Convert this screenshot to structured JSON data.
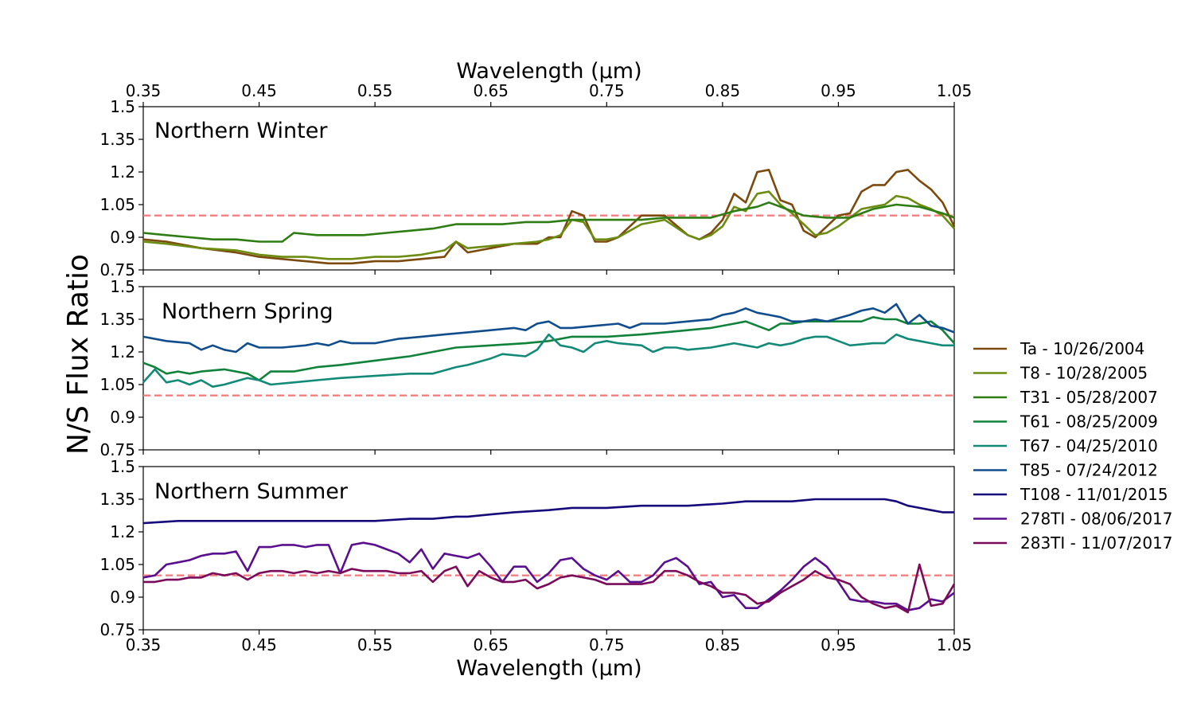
{
  "chart_data": {
    "type": "line",
    "top_xlabel": "Wavelength (µm)",
    "xlabel": "Wavelength (µm)",
    "ylabel": "N/S Flux Ratio",
    "xlim": [
      0.35,
      1.05
    ],
    "ylim": [
      0.75,
      1.5
    ],
    "xticks": [
      "0.35",
      "0.45",
      "0.55",
      "0.65",
      "0.75",
      "0.85",
      "0.95",
      "1.05"
    ],
    "yticks": [
      "0.75",
      "0.9",
      "1.05",
      "1.2",
      "1.35",
      "1.5"
    ],
    "reference_line": {
      "y": 1.0,
      "style": "dashed",
      "color": "#f08080"
    },
    "legend_position": "right",
    "colors": {
      "Ta": "#7b4a0c",
      "T8": "#6b8c10",
      "T31": "#2d7d12",
      "T61": "#10823a",
      "T67": "#138a78",
      "T85": "#114d8c",
      "T108": "#160a7a",
      "278TI": "#5a0f8e",
      "283TI": "#7a0a5a"
    },
    "series": [
      {
        "name": "Ta - 10/26/2004",
        "key": "Ta",
        "panel": 0,
        "x": [
          0.35,
          0.37,
          0.4,
          0.43,
          0.45,
          0.47,
          0.49,
          0.51,
          0.53,
          0.55,
          0.57,
          0.59,
          0.61,
          0.62,
          0.63,
          0.65,
          0.67,
          0.69,
          0.7,
          0.71,
          0.72,
          0.73,
          0.74,
          0.75,
          0.76,
          0.78,
          0.8,
          0.82,
          0.83,
          0.84,
          0.85,
          0.86,
          0.87,
          0.88,
          0.89,
          0.9,
          0.91,
          0.92,
          0.93,
          0.94,
          0.95,
          0.96,
          0.97,
          0.98,
          0.99,
          1.0,
          1.01,
          1.02,
          1.03,
          1.04,
          1.05
        ],
        "y": [
          0.89,
          0.88,
          0.85,
          0.83,
          0.81,
          0.8,
          0.79,
          0.78,
          0.78,
          0.79,
          0.79,
          0.8,
          0.81,
          0.88,
          0.83,
          0.85,
          0.87,
          0.87,
          0.9,
          0.9,
          1.02,
          1.0,
          0.88,
          0.88,
          0.9,
          1.0,
          1.0,
          0.91,
          0.89,
          0.92,
          0.98,
          1.1,
          1.06,
          1.2,
          1.21,
          1.07,
          1.05,
          0.93,
          0.9,
          0.95,
          1.0,
          1.01,
          1.11,
          1.14,
          1.14,
          1.2,
          1.21,
          1.16,
          1.12,
          1.06,
          0.95
        ]
      },
      {
        "name": "T8 - 10/28/2005",
        "key": "T8",
        "panel": 0,
        "x": [
          0.35,
          0.37,
          0.4,
          0.43,
          0.45,
          0.47,
          0.49,
          0.51,
          0.53,
          0.55,
          0.57,
          0.59,
          0.61,
          0.62,
          0.63,
          0.65,
          0.67,
          0.69,
          0.7,
          0.71,
          0.72,
          0.73,
          0.74,
          0.75,
          0.76,
          0.78,
          0.8,
          0.82,
          0.83,
          0.84,
          0.85,
          0.86,
          0.87,
          0.88,
          0.89,
          0.9,
          0.91,
          0.92,
          0.93,
          0.94,
          0.95,
          0.96,
          0.97,
          0.98,
          0.99,
          1.0,
          1.01,
          1.02,
          1.03,
          1.04,
          1.05
        ],
        "y": [
          0.88,
          0.87,
          0.85,
          0.84,
          0.82,
          0.81,
          0.81,
          0.8,
          0.8,
          0.81,
          0.81,
          0.82,
          0.84,
          0.88,
          0.85,
          0.86,
          0.87,
          0.88,
          0.89,
          0.91,
          0.98,
          0.97,
          0.89,
          0.89,
          0.9,
          0.96,
          0.98,
          0.91,
          0.89,
          0.91,
          0.95,
          1.04,
          1.02,
          1.1,
          1.11,
          1.05,
          1.01,
          0.96,
          0.91,
          0.92,
          0.95,
          0.99,
          1.03,
          1.04,
          1.05,
          1.09,
          1.08,
          1.05,
          1.03,
          1.0,
          0.94
        ]
      },
      {
        "name": "T31 - 05/28/2007",
        "key": "T31",
        "panel": 0,
        "x": [
          0.35,
          0.37,
          0.39,
          0.41,
          0.43,
          0.45,
          0.47,
          0.48,
          0.5,
          0.52,
          0.54,
          0.56,
          0.58,
          0.6,
          0.62,
          0.64,
          0.66,
          0.68,
          0.7,
          0.72,
          0.74,
          0.76,
          0.78,
          0.8,
          0.82,
          0.84,
          0.86,
          0.88,
          0.89,
          0.9,
          0.92,
          0.94,
          0.96,
          0.98,
          1.0,
          1.02,
          1.04,
          1.05
        ],
        "y": [
          0.92,
          0.91,
          0.9,
          0.89,
          0.89,
          0.88,
          0.88,
          0.92,
          0.91,
          0.91,
          0.91,
          0.92,
          0.93,
          0.94,
          0.96,
          0.96,
          0.96,
          0.97,
          0.97,
          0.98,
          0.98,
          0.98,
          0.98,
          0.99,
          0.99,
          0.99,
          1.02,
          1.04,
          1.06,
          1.04,
          1.0,
          0.99,
          0.99,
          1.03,
          1.05,
          1.04,
          1.01,
          0.99
        ]
      },
      {
        "name": "T61 - 08/25/2009",
        "key": "T61",
        "panel": 1,
        "x": [
          0.35,
          0.36,
          0.37,
          0.38,
          0.39,
          0.4,
          0.42,
          0.44,
          0.45,
          0.46,
          0.48,
          0.49,
          0.5,
          0.52,
          0.55,
          0.58,
          0.6,
          0.62,
          0.65,
          0.68,
          0.7,
          0.72,
          0.75,
          0.78,
          0.8,
          0.82,
          0.84,
          0.86,
          0.87,
          0.88,
          0.89,
          0.9,
          0.91,
          0.92,
          0.94,
          0.96,
          0.97,
          0.98,
          0.99,
          1.0,
          1.01,
          1.02,
          1.03,
          1.04,
          1.05
        ],
        "y": [
          1.15,
          1.13,
          1.1,
          1.11,
          1.1,
          1.11,
          1.12,
          1.1,
          1.07,
          1.11,
          1.11,
          1.12,
          1.13,
          1.14,
          1.16,
          1.18,
          1.2,
          1.22,
          1.23,
          1.24,
          1.25,
          1.27,
          1.27,
          1.28,
          1.29,
          1.3,
          1.31,
          1.33,
          1.34,
          1.32,
          1.3,
          1.33,
          1.33,
          1.34,
          1.34,
          1.34,
          1.34,
          1.36,
          1.35,
          1.35,
          1.33,
          1.33,
          1.34,
          1.3,
          1.24
        ]
      },
      {
        "name": "T67 - 04/25/2010",
        "key": "T67",
        "panel": 1,
        "x": [
          0.35,
          0.36,
          0.37,
          0.38,
          0.39,
          0.4,
          0.41,
          0.42,
          0.44,
          0.45,
          0.46,
          0.48,
          0.5,
          0.52,
          0.55,
          0.58,
          0.6,
          0.62,
          0.63,
          0.65,
          0.66,
          0.68,
          0.69,
          0.7,
          0.71,
          0.72,
          0.73,
          0.74,
          0.75,
          0.76,
          0.78,
          0.79,
          0.8,
          0.81,
          0.82,
          0.84,
          0.85,
          0.86,
          0.87,
          0.88,
          0.89,
          0.9,
          0.91,
          0.92,
          0.93,
          0.94,
          0.95,
          0.96,
          0.98,
          0.99,
          1.0,
          1.01,
          1.02,
          1.03,
          1.04,
          1.05
        ],
        "y": [
          1.06,
          1.12,
          1.06,
          1.07,
          1.05,
          1.07,
          1.04,
          1.05,
          1.08,
          1.07,
          1.05,
          1.06,
          1.07,
          1.08,
          1.09,
          1.1,
          1.1,
          1.13,
          1.14,
          1.17,
          1.19,
          1.18,
          1.21,
          1.28,
          1.23,
          1.22,
          1.2,
          1.24,
          1.25,
          1.24,
          1.23,
          1.2,
          1.22,
          1.22,
          1.21,
          1.22,
          1.23,
          1.24,
          1.23,
          1.22,
          1.24,
          1.23,
          1.24,
          1.26,
          1.27,
          1.27,
          1.25,
          1.23,
          1.24,
          1.24,
          1.28,
          1.26,
          1.25,
          1.24,
          1.23,
          1.23
        ]
      },
      {
        "name": "T85 - 07/24/2012",
        "key": "T85",
        "panel": 1,
        "x": [
          0.35,
          0.37,
          0.39,
          0.4,
          0.41,
          0.42,
          0.43,
          0.44,
          0.45,
          0.47,
          0.49,
          0.5,
          0.51,
          0.52,
          0.53,
          0.55,
          0.57,
          0.59,
          0.61,
          0.63,
          0.65,
          0.67,
          0.68,
          0.69,
          0.7,
          0.71,
          0.72,
          0.74,
          0.76,
          0.77,
          0.78,
          0.8,
          0.82,
          0.84,
          0.85,
          0.86,
          0.87,
          0.88,
          0.89,
          0.9,
          0.91,
          0.92,
          0.93,
          0.94,
          0.96,
          0.97,
          0.98,
          0.99,
          1.0,
          1.01,
          1.02,
          1.03,
          1.04,
          1.05
        ],
        "y": [
          1.27,
          1.25,
          1.24,
          1.21,
          1.23,
          1.21,
          1.2,
          1.24,
          1.22,
          1.22,
          1.23,
          1.24,
          1.23,
          1.25,
          1.24,
          1.24,
          1.26,
          1.27,
          1.28,
          1.29,
          1.3,
          1.31,
          1.3,
          1.33,
          1.34,
          1.31,
          1.31,
          1.32,
          1.33,
          1.31,
          1.33,
          1.33,
          1.34,
          1.35,
          1.37,
          1.38,
          1.4,
          1.38,
          1.37,
          1.36,
          1.34,
          1.34,
          1.35,
          1.34,
          1.37,
          1.39,
          1.4,
          1.38,
          1.42,
          1.33,
          1.37,
          1.32,
          1.31,
          1.29
        ]
      },
      {
        "name": "T108 - 11/01/2015",
        "key": "T108",
        "panel": 2,
        "x": [
          0.35,
          0.38,
          0.4,
          0.42,
          0.44,
          0.46,
          0.48,
          0.5,
          0.52,
          0.55,
          0.58,
          0.6,
          0.62,
          0.63,
          0.65,
          0.67,
          0.7,
          0.72,
          0.75,
          0.78,
          0.8,
          0.82,
          0.85,
          0.87,
          0.89,
          0.91,
          0.93,
          0.95,
          0.97,
          0.99,
          1.0,
          1.01,
          1.02,
          1.03,
          1.04,
          1.05
        ],
        "y": [
          1.24,
          1.25,
          1.25,
          1.25,
          1.25,
          1.25,
          1.25,
          1.25,
          1.25,
          1.25,
          1.26,
          1.26,
          1.27,
          1.27,
          1.28,
          1.29,
          1.3,
          1.31,
          1.31,
          1.32,
          1.32,
          1.32,
          1.33,
          1.34,
          1.34,
          1.34,
          1.35,
          1.35,
          1.35,
          1.35,
          1.34,
          1.32,
          1.31,
          1.3,
          1.29,
          1.29
        ]
      },
      {
        "name": "278TI - 08/06/2017",
        "key": "278TI",
        "panel": 2,
        "x": [
          0.35,
          0.36,
          0.37,
          0.38,
          0.39,
          0.4,
          0.41,
          0.42,
          0.43,
          0.44,
          0.45,
          0.46,
          0.47,
          0.48,
          0.49,
          0.5,
          0.51,
          0.52,
          0.53,
          0.54,
          0.55,
          0.56,
          0.57,
          0.58,
          0.59,
          0.6,
          0.61,
          0.62,
          0.63,
          0.64,
          0.65,
          0.66,
          0.67,
          0.68,
          0.69,
          0.7,
          0.71,
          0.72,
          0.73,
          0.74,
          0.75,
          0.76,
          0.77,
          0.78,
          0.79,
          0.8,
          0.81,
          0.82,
          0.83,
          0.84,
          0.85,
          0.86,
          0.87,
          0.88,
          0.89,
          0.9,
          0.91,
          0.92,
          0.93,
          0.94,
          0.95,
          0.96,
          0.97,
          0.98,
          0.99,
          1.0,
          1.01,
          1.02,
          1.03,
          1.04,
          1.05
        ],
        "y": [
          0.99,
          1.0,
          1.05,
          1.06,
          1.07,
          1.09,
          1.1,
          1.1,
          1.11,
          1.02,
          1.13,
          1.13,
          1.14,
          1.14,
          1.13,
          1.14,
          1.14,
          1.01,
          1.14,
          1.15,
          1.14,
          1.12,
          1.1,
          1.06,
          1.12,
          1.03,
          1.1,
          1.09,
          1.08,
          1.1,
          1.04,
          0.97,
          1.04,
          1.04,
          0.97,
          1.01,
          1.07,
          1.08,
          1.03,
          1.0,
          0.98,
          1.02,
          0.97,
          0.97,
          1.0,
          1.06,
          1.08,
          1.04,
          0.96,
          0.97,
          0.9,
          0.91,
          0.85,
          0.85,
          0.89,
          0.93,
          0.98,
          1.04,
          1.08,
          1.04,
          0.97,
          0.89,
          0.88,
          0.88,
          0.87,
          0.87,
          0.84,
          0.85,
          0.89,
          0.88,
          0.92
        ]
      },
      {
        "name": "283TI - 11/07/2017",
        "key": "283TI",
        "panel": 2,
        "x": [
          0.35,
          0.36,
          0.37,
          0.38,
          0.39,
          0.4,
          0.41,
          0.42,
          0.43,
          0.44,
          0.45,
          0.46,
          0.47,
          0.48,
          0.49,
          0.5,
          0.51,
          0.52,
          0.53,
          0.54,
          0.55,
          0.56,
          0.57,
          0.58,
          0.59,
          0.6,
          0.61,
          0.62,
          0.63,
          0.64,
          0.65,
          0.66,
          0.67,
          0.68,
          0.69,
          0.7,
          0.71,
          0.72,
          0.73,
          0.74,
          0.75,
          0.76,
          0.77,
          0.78,
          0.79,
          0.8,
          0.81,
          0.82,
          0.83,
          0.84,
          0.85,
          0.86,
          0.87,
          0.88,
          0.89,
          0.9,
          0.91,
          0.92,
          0.93,
          0.94,
          0.95,
          0.96,
          0.97,
          0.98,
          0.99,
          1.0,
          1.01,
          1.02,
          1.03,
          1.04,
          1.05
        ],
        "y": [
          0.97,
          0.97,
          0.98,
          0.98,
          0.99,
          0.99,
          1.01,
          1.0,
          1.01,
          0.98,
          1.01,
          1.02,
          1.02,
          1.01,
          1.02,
          1.01,
          1.02,
          1.01,
          1.03,
          1.02,
          1.02,
          1.02,
          1.01,
          1.01,
          1.02,
          0.97,
          1.02,
          1.04,
          0.95,
          1.02,
          0.99,
          0.97,
          0.97,
          0.98,
          0.94,
          0.96,
          0.99,
          1.0,
          0.99,
          0.98,
          0.96,
          0.96,
          0.96,
          0.96,
          0.97,
          1.02,
          1.02,
          1.0,
          0.97,
          0.95,
          0.92,
          0.92,
          0.91,
          0.87,
          0.88,
          0.92,
          0.95,
          0.98,
          1.02,
          0.99,
          0.98,
          0.96,
          0.9,
          0.87,
          0.85,
          0.86,
          0.83,
          1.05,
          0.86,
          0.87,
          0.96
        ]
      }
    ],
    "panels": [
      {
        "title": "Northern Winter"
      },
      {
        "title": "Northern Spring"
      },
      {
        "title": "Northern Summer"
      }
    ]
  }
}
